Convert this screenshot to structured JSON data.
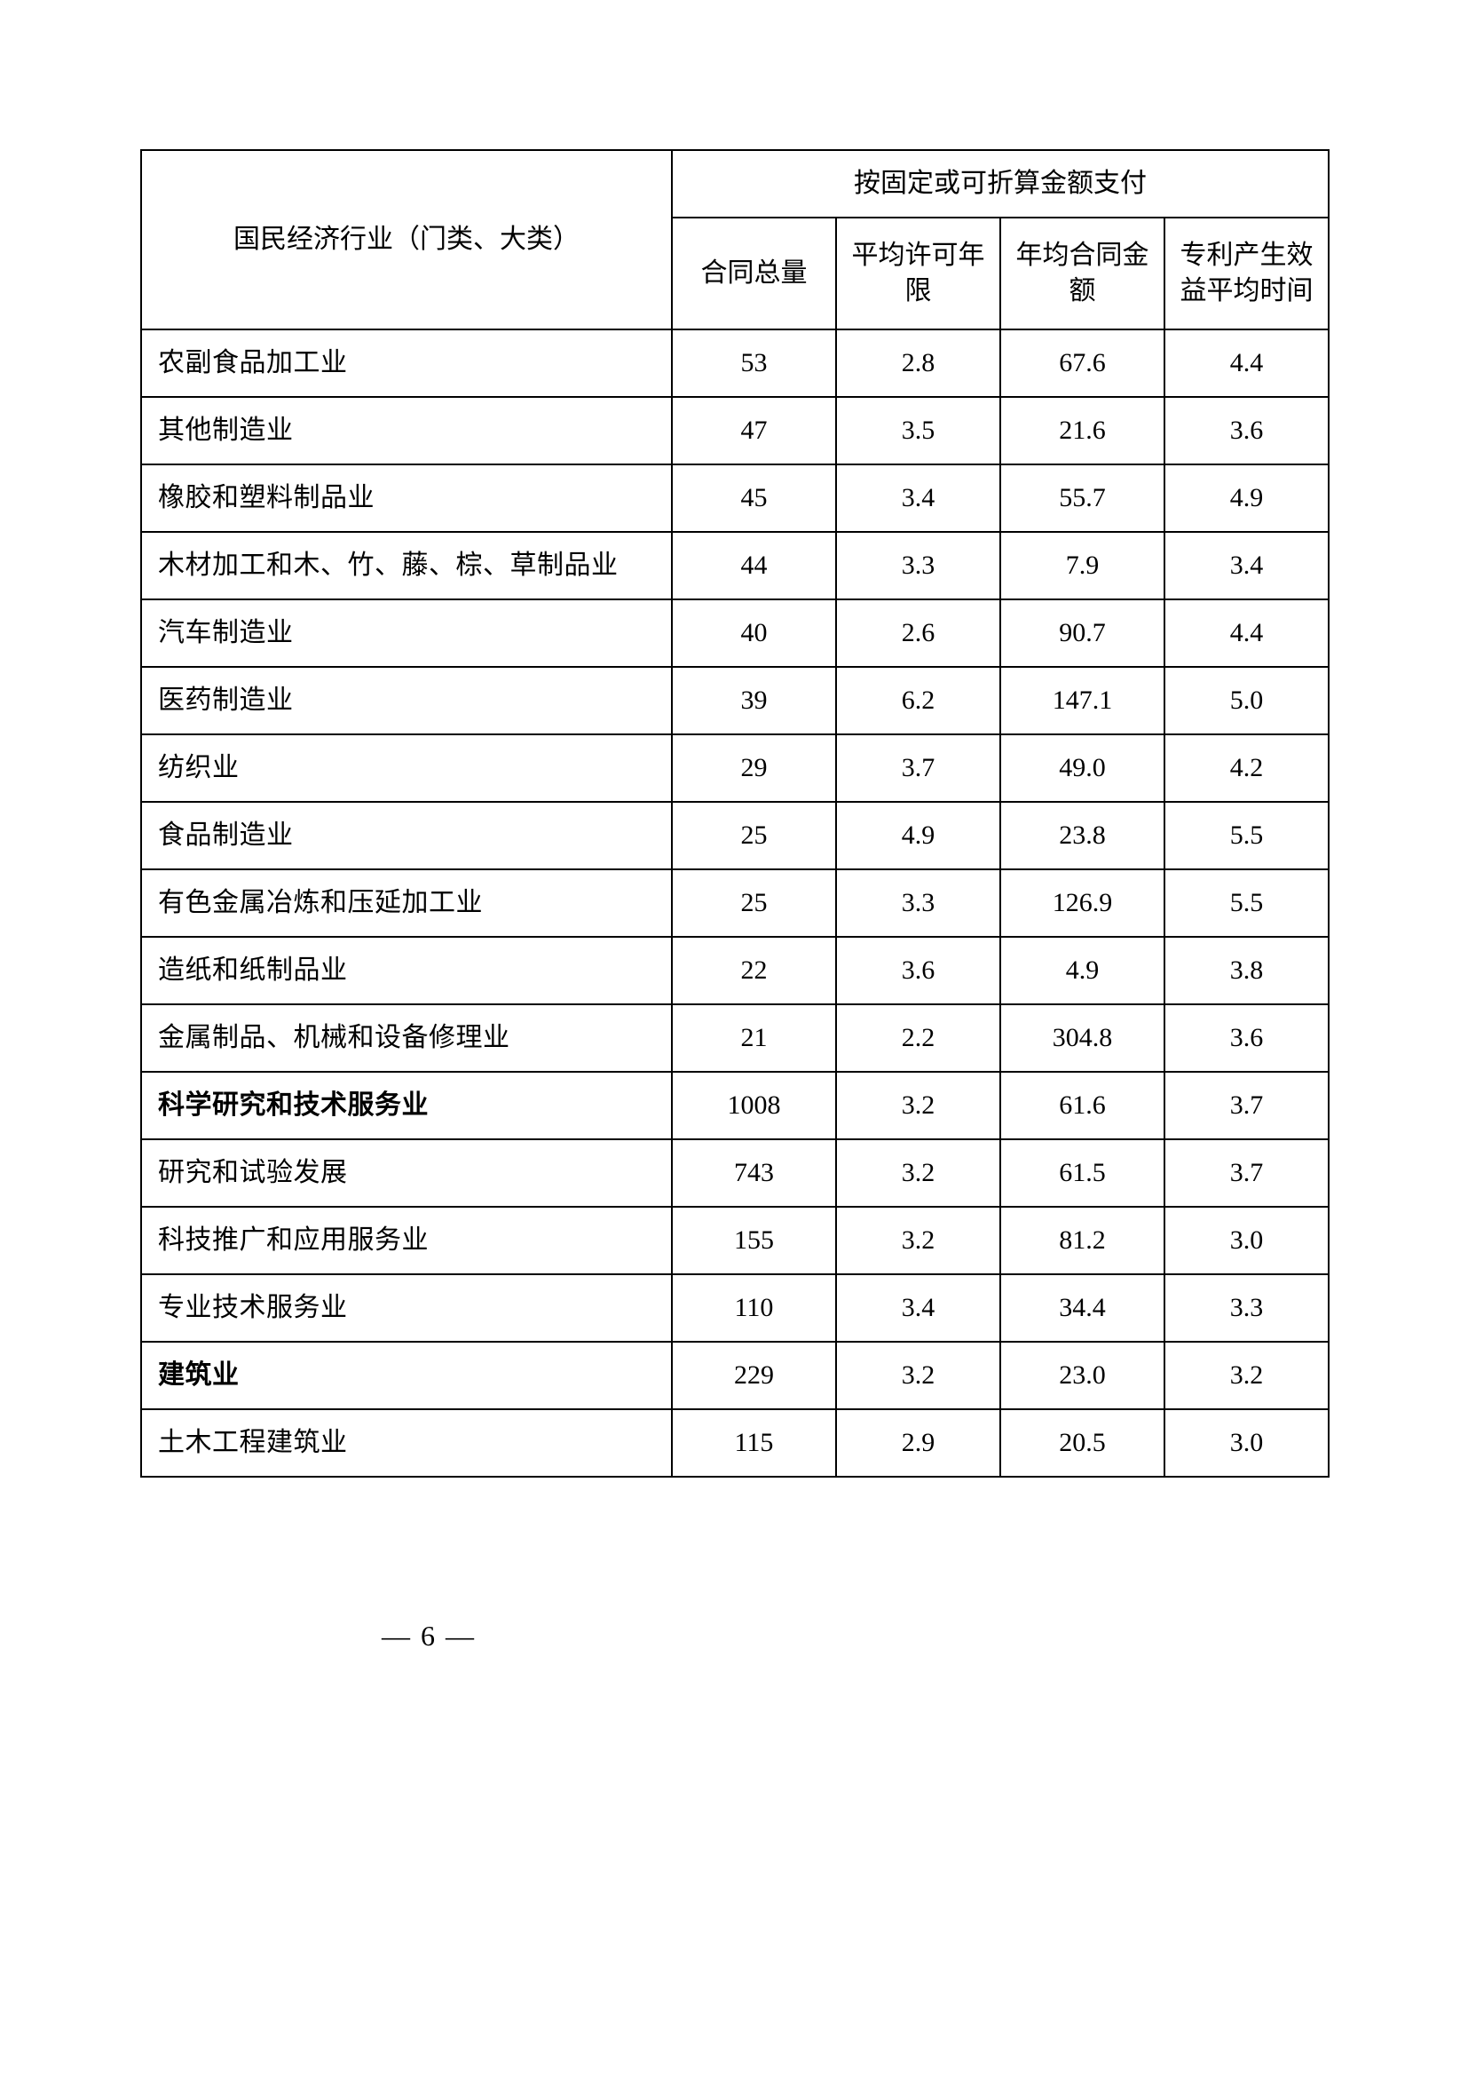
{
  "table": {
    "header": {
      "industry_label": "国民经济行业（门类、大类）",
      "group_label": "按固定或可折算金额支付",
      "sub": {
        "c1": "合同总量",
        "c2": "平均许可年限",
        "c3": "年均合同金额",
        "c4": "专利产生效益平均时间"
      }
    },
    "rows": [
      {
        "bold": false,
        "industry": "农副食品加工业",
        "c1": "53",
        "c2": "2.8",
        "c3": "67.6",
        "c4": "4.4"
      },
      {
        "bold": false,
        "industry": "其他制造业",
        "c1": "47",
        "c2": "3.5",
        "c3": "21.6",
        "c4": "3.6"
      },
      {
        "bold": false,
        "industry": "橡胶和塑料制品业",
        "c1": "45",
        "c2": "3.4",
        "c3": "55.7",
        "c4": "4.9"
      },
      {
        "bold": false,
        "industry": "木材加工和木、竹、藤、棕、草制品业",
        "c1": "44",
        "c2": "3.3",
        "c3": "7.9",
        "c4": "3.4"
      },
      {
        "bold": false,
        "industry": "汽车制造业",
        "c1": "40",
        "c2": "2.6",
        "c3": "90.7",
        "c4": "4.4"
      },
      {
        "bold": false,
        "industry": "医药制造业",
        "c1": "39",
        "c2": "6.2",
        "c3": "147.1",
        "c4": "5.0"
      },
      {
        "bold": false,
        "industry": "纺织业",
        "c1": "29",
        "c2": "3.7",
        "c3": "49.0",
        "c4": "4.2"
      },
      {
        "bold": false,
        "industry": "食品制造业",
        "c1": "25",
        "c2": "4.9",
        "c3": "23.8",
        "c4": "5.5"
      },
      {
        "bold": false,
        "industry": "有色金属冶炼和压延加工业",
        "c1": "25",
        "c2": "3.3",
        "c3": "126.9",
        "c4": "5.5"
      },
      {
        "bold": false,
        "industry": "造纸和纸制品业",
        "c1": "22",
        "c2": "3.6",
        "c3": "4.9",
        "c4": "3.8"
      },
      {
        "bold": false,
        "industry": "金属制品、机械和设备修理业",
        "c1": "21",
        "c2": "2.2",
        "c3": "304.8",
        "c4": "3.6"
      },
      {
        "bold": true,
        "industry": "科学研究和技术服务业",
        "c1": "1008",
        "c2": "3.2",
        "c3": "61.6",
        "c4": "3.7"
      },
      {
        "bold": false,
        "industry": "研究和试验发展",
        "c1": "743",
        "c2": "3.2",
        "c3": "61.5",
        "c4": "3.7"
      },
      {
        "bold": false,
        "industry": "科技推广和应用服务业",
        "c1": "155",
        "c2": "3.2",
        "c3": "81.2",
        "c4": "3.0"
      },
      {
        "bold": false,
        "industry": "专业技术服务业",
        "c1": "110",
        "c2": "3.4",
        "c3": "34.4",
        "c4": "3.3"
      },
      {
        "bold": true,
        "industry": "建筑业",
        "c1": "229",
        "c2": "3.2",
        "c3": "23.0",
        "c4": "3.2"
      },
      {
        "bold": false,
        "industry": "土木工程建筑业",
        "c1": "115",
        "c2": "2.9",
        "c3": "20.5",
        "c4": "3.0"
      }
    ]
  },
  "page_number": "— 6 —"
}
